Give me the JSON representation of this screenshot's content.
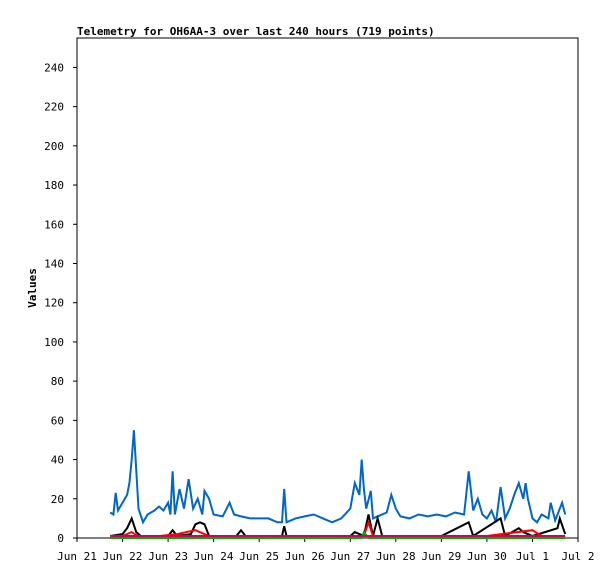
{
  "chart_data": {
    "type": "line",
    "title": "Telemetry for OH6AA-3 over last 240 hours (719 points)",
    "y_label": "Values",
    "xlim": [
      0,
      11
    ],
    "xticks": [
      {
        "value": 0,
        "label": "Jun 21"
      },
      {
        "value": 1,
        "label": "Jun 22"
      },
      {
        "value": 2,
        "label": "Jun 23"
      },
      {
        "value": 3,
        "label": "Jun 24"
      },
      {
        "value": 4,
        "label": "Jun 25"
      },
      {
        "value": 5,
        "label": "Jun 26"
      },
      {
        "value": 6,
        "label": "Jun 27"
      },
      {
        "value": 7,
        "label": "Jun 28"
      },
      {
        "value": 8,
        "label": "Jun 29"
      },
      {
        "value": 9,
        "label": "Jun 30"
      },
      {
        "value": 10,
        "label": "Jul 1"
      },
      {
        "value": 11,
        "label": "Jul 2"
      }
    ],
    "ylim": [
      0,
      255
    ],
    "yticks": [
      0,
      20,
      40,
      60,
      80,
      100,
      120,
      140,
      160,
      180,
      200,
      220,
      240
    ],
    "series": [
      {
        "color": "#0066cc",
        "x": [
          0.73,
          0.8,
          0.85,
          0.9,
          1.0,
          1.1,
          1.15,
          1.2,
          1.25,
          1.3,
          1.35,
          1.45,
          1.55,
          1.7,
          1.8,
          1.9,
          2.0,
          2.05,
          2.1,
          2.15,
          2.25,
          2.35,
          2.45,
          2.55,
          2.65,
          2.75,
          2.8,
          2.9,
          3.0,
          3.2,
          3.35,
          3.45,
          3.6,
          3.8,
          4.0,
          4.2,
          4.4,
          4.5,
          4.55,
          4.6,
          4.8,
          5.0,
          5.2,
          5.4,
          5.6,
          5.8,
          6.0,
          6.1,
          6.2,
          6.25,
          6.3,
          6.35,
          6.45,
          6.5,
          6.6,
          6.8,
          6.9,
          7.0,
          7.1,
          7.3,
          7.5,
          7.7,
          7.9,
          8.1,
          8.3,
          8.5,
          8.6,
          8.7,
          8.8,
          8.9,
          9.0,
          9.1,
          9.2,
          9.3,
          9.4,
          9.5,
          9.6,
          9.7,
          9.8,
          9.85,
          9.9,
          10.0,
          10.1,
          10.2,
          10.35,
          10.4,
          10.5,
          10.6,
          10.65,
          10.72
        ],
        "values": [
          13,
          12,
          23,
          14,
          18,
          22,
          28,
          40,
          55,
          35,
          15,
          8,
          12,
          14,
          16,
          14,
          18,
          12,
          34,
          12,
          25,
          15,
          30,
          15,
          20,
          12,
          24,
          20,
          12,
          11,
          18,
          12,
          11,
          10,
          10,
          10,
          8,
          8,
          25,
          8,
          10,
          11,
          12,
          10,
          8,
          10,
          15,
          28,
          22,
          40,
          25,
          15,
          24,
          10,
          11,
          13,
          22,
          15,
          11,
          10,
          12,
          11,
          12,
          11,
          13,
          12,
          34,
          14,
          20,
          12,
          10,
          14,
          8,
          26,
          10,
          15,
          22,
          28,
          20,
          28,
          20,
          10,
          8,
          12,
          10,
          18,
          9,
          15,
          18,
          12
        ]
      },
      {
        "color": "#000000",
        "x": [
          0.73,
          1.0,
          1.1,
          1.2,
          1.3,
          1.4,
          2.0,
          2.1,
          2.2,
          2.5,
          2.6,
          2.7,
          2.8,
          2.9,
          3.5,
          3.6,
          3.7,
          4.5,
          4.55,
          4.6,
          6.0,
          6.1,
          6.2,
          6.3,
          6.4,
          6.5,
          6.6,
          6.7,
          7.0,
          8.0,
          8.6,
          8.7,
          9.3,
          9.4,
          9.7,
          9.8,
          10.0,
          10.55,
          10.6,
          10.72
        ],
        "values": [
          1,
          2,
          5,
          10,
          3,
          1,
          1,
          4,
          1,
          2,
          7,
          8,
          7,
          1,
          1,
          4,
          1,
          1,
          6,
          1,
          1,
          3,
          2,
          1,
          12,
          1,
          10,
          1,
          1,
          1,
          8,
          1,
          10,
          1,
          5,
          3,
          1,
          5,
          10,
          2
        ]
      },
      {
        "color": "#ff0000",
        "x": [
          0.73,
          1.0,
          1.2,
          1.4,
          2.2,
          2.6,
          2.8,
          3.0,
          6.3,
          6.4,
          6.5,
          9.0,
          10.0,
          10.2,
          10.72
        ],
        "values": [
          0,
          1,
          3,
          0,
          2,
          4,
          2,
          0,
          1,
          8,
          1,
          1,
          4,
          1,
          0
        ]
      },
      {
        "color": "#00aa00",
        "x": [
          0.73,
          6.25,
          6.3,
          6.4,
          10.72
        ],
        "values": [
          0,
          0,
          3,
          0,
          0
        ]
      },
      {
        "color": "#cc0066",
        "x": [
          0.73,
          10.72
        ],
        "values": [
          1,
          1
        ]
      }
    ]
  }
}
